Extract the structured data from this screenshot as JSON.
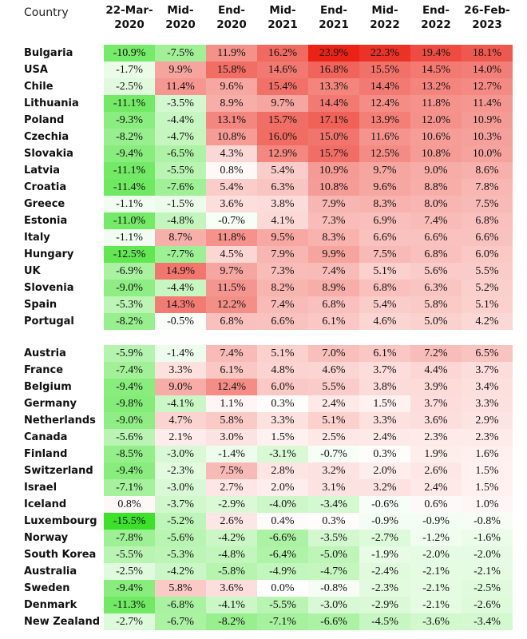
{
  "chart_data": {
    "type": "heatmap",
    "row_header_label": "Country",
    "columns": [
      "22-Mar-\n2020",
      "Mid-\n2020",
      "End-\n2020",
      "Mid-\n2021",
      "End-\n2021",
      "Mid-\n2022",
      "End-\n2022",
      "26-Feb-\n2023"
    ],
    "color_scale": {
      "negative": "#3ce12a",
      "zero": "#ffffff",
      "positive": "#ea2316",
      "min": -15.5,
      "max": 23.9
    },
    "groups": [
      {
        "rows": [
          {
            "country": "Bulgaria",
            "values": [
              -10.9,
              -7.5,
              11.9,
              16.2,
              23.9,
              22.3,
              19.4,
              18.1
            ]
          },
          {
            "country": "USA",
            "values": [
              -1.7,
              9.9,
              15.8,
              14.6,
              16.8,
              15.5,
              14.5,
              14.0
            ]
          },
          {
            "country": "Chile",
            "values": [
              -2.5,
              11.4,
              9.6,
              15.4,
              13.3,
              14.4,
              13.2,
              12.7
            ]
          },
          {
            "country": "Lithuania",
            "values": [
              -11.1,
              -3.5,
              8.9,
              9.7,
              14.4,
              12.4,
              11.8,
              11.4
            ]
          },
          {
            "country": "Poland",
            "values": [
              -9.3,
              -4.4,
              13.1,
              15.7,
              17.1,
              13.9,
              12.0,
              10.9
            ]
          },
          {
            "country": "Czechia",
            "values": [
              -8.2,
              -4.7,
              10.8,
              16.0,
              15.0,
              11.6,
              10.6,
              10.3
            ]
          },
          {
            "country": "Slovakia",
            "values": [
              -9.4,
              -6.5,
              4.3,
              12.9,
              15.7,
              12.5,
              10.8,
              10.0
            ]
          },
          {
            "country": "Latvia",
            "values": [
              -11.1,
              -5.5,
              0.8,
              5.4,
              10.9,
              9.7,
              9.0,
              8.6
            ]
          },
          {
            "country": "Croatia",
            "values": [
              -11.4,
              -7.6,
              5.4,
              6.3,
              10.8,
              9.6,
              8.8,
              7.8
            ]
          },
          {
            "country": "Greece",
            "values": [
              -1.1,
              -1.5,
              3.6,
              3.8,
              7.9,
              8.3,
              8.0,
              7.5
            ]
          },
          {
            "country": "Estonia",
            "values": [
              -11.0,
              -4.8,
              -0.7,
              4.1,
              7.3,
              6.9,
              7.4,
              6.8
            ]
          },
          {
            "country": "Italy",
            "values": [
              -1.1,
              8.7,
              11.8,
              9.5,
              8.3,
              6.6,
              6.6,
              6.6
            ]
          },
          {
            "country": "Hungary",
            "values": [
              -12.5,
              -7.7,
              4.5,
              7.9,
              9.9,
              7.5,
              6.8,
              6.0
            ]
          },
          {
            "country": "UK",
            "values": [
              -6.9,
              14.9,
              9.7,
              7.3,
              7.4,
              5.1,
              5.6,
              5.5
            ]
          },
          {
            "country": "Slovenia",
            "values": [
              -9.0,
              -4.4,
              11.5,
              8.2,
              8.9,
              6.8,
              6.3,
              5.2
            ]
          },
          {
            "country": "Spain",
            "values": [
              -5.3,
              14.3,
              12.2,
              7.4,
              6.8,
              5.4,
              5.8,
              5.1
            ]
          },
          {
            "country": "Portugal",
            "values": [
              -8.2,
              -0.5,
              6.8,
              6.6,
              6.1,
              4.6,
              5.0,
              4.2
            ]
          }
        ]
      },
      {
        "rows": [
          {
            "country": "Austria",
            "values": [
              -5.9,
              -1.4,
              7.4,
              5.1,
              7.0,
              6.1,
              7.2,
              6.5
            ]
          },
          {
            "country": "France",
            "values": [
              -7.4,
              3.3,
              6.1,
              4.8,
              4.6,
              3.7,
              4.4,
              3.7
            ]
          },
          {
            "country": "Belgium",
            "values": [
              -9.4,
              9.0,
              12.4,
              6.0,
              5.5,
              3.8,
              3.9,
              3.4
            ]
          },
          {
            "country": "Germany",
            "values": [
              -9.8,
              -4.1,
              1.1,
              0.3,
              2.4,
              1.5,
              3.7,
              3.3
            ]
          },
          {
            "country": "Netherlands",
            "values": [
              -9.0,
              4.7,
              5.8,
              3.3,
              5.1,
              3.3,
              3.6,
              2.9
            ]
          },
          {
            "country": "Canada",
            "values": [
              -5.6,
              2.1,
              3.0,
              1.5,
              2.5,
              2.4,
              2.3,
              2.3
            ]
          },
          {
            "country": "Finland",
            "values": [
              -8.5,
              -3.0,
              -1.4,
              -3.1,
              -0.7,
              0.3,
              1.9,
              1.6
            ]
          },
          {
            "country": "Switzerland",
            "values": [
              -9.4,
              -2.3,
              7.5,
              2.8,
              3.2,
              2.0,
              2.6,
              1.5
            ]
          },
          {
            "country": "Israel",
            "values": [
              -7.1,
              -3.0,
              2.7,
              2.0,
              3.1,
              3.2,
              2.4,
              1.5
            ]
          },
          {
            "country": "Iceland",
            "values": [
              0.8,
              -3.7,
              -2.9,
              -4.0,
              -3.4,
              -0.6,
              0.6,
              1.0
            ]
          },
          {
            "country": "Luxembourg",
            "values": [
              -15.5,
              -5.2,
              2.6,
              0.4,
              0.3,
              -0.9,
              -0.9,
              -0.8
            ]
          },
          {
            "country": "Norway",
            "values": [
              -7.8,
              -5.6,
              -4.2,
              -6.6,
              -3.5,
              -2.7,
              -1.2,
              -1.6
            ]
          },
          {
            "country": "South Korea",
            "values": [
              -5.5,
              -5.3,
              -4.8,
              -6.4,
              -5.0,
              -1.9,
              -2.0,
              -2.0
            ]
          },
          {
            "country": "Australia",
            "values": [
              -2.5,
              -4.2,
              -5.8,
              -4.9,
              -4.7,
              -2.4,
              -2.1,
              -2.1
            ]
          },
          {
            "country": "Sweden",
            "values": [
              -9.4,
              5.8,
              3.6,
              0.0,
              -0.8,
              -2.3,
              -2.1,
              -2.5
            ]
          },
          {
            "country": "Denmark",
            "values": [
              -11.3,
              -6.8,
              -4.1,
              -5.5,
              -3.0,
              -2.9,
              -2.1,
              -2.6
            ]
          },
          {
            "country": "New Zealand",
            "values": [
              -2.7,
              -6.7,
              -8.2,
              -7.1,
              -6.6,
              -4.5,
              -3.6,
              -3.4
            ]
          }
        ]
      }
    ]
  }
}
